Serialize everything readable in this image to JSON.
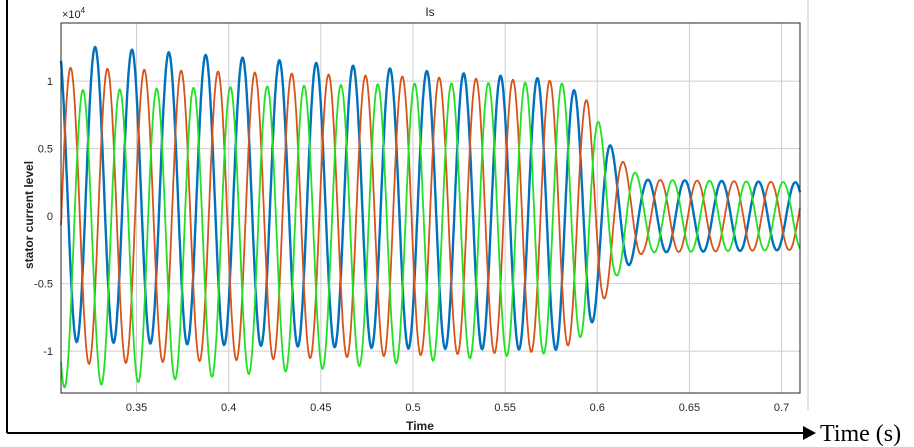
{
  "chart_data": {
    "type": "line",
    "title": "Is",
    "xlabel": "Time",
    "ylabel": "stator current level",
    "y_exponent_label": "×10",
    "y_exponent_power": "4",
    "outer_axis_label": "Time (s)",
    "xlim": [
      0.309,
      0.71
    ],
    "ylim": [
      -1.31,
      1.43
    ],
    "x_ticks": [
      "0.35",
      "0.4",
      "0.45",
      "0.5",
      "0.55",
      "0.6",
      "0.65",
      "0.7"
    ],
    "x_tick_values": [
      0.35,
      0.4,
      0.45,
      0.5,
      0.55,
      0.6,
      0.65,
      0.7
    ],
    "y_ticks": [
      "1",
      "0.5",
      "0",
      "-0.5",
      "-1"
    ],
    "y_tick_values": [
      1,
      0.5,
      0,
      -0.5,
      -1
    ],
    "grid": true,
    "frequency_hz": 50,
    "amplitude_envelope": [
      [
        0.309,
        1.1
      ],
      [
        0.45,
        1.05
      ],
      [
        0.58,
        1.0
      ],
      [
        0.595,
        0.85
      ],
      [
        0.61,
        0.45
      ],
      [
        0.625,
        0.27
      ],
      [
        0.71,
        0.25
      ]
    ],
    "series": [
      {
        "phase": "a",
        "color": "#0072BD",
        "first_peak_time": 0.3275,
        "dc_offset": [
          [
            0.309,
            0.17
          ],
          [
            0.5,
            0.05
          ],
          [
            0.6,
            0.0
          ],
          [
            0.71,
            0.0
          ]
        ]
      },
      {
        "phase": "b",
        "color": "#D95319",
        "first_peak_time": 0.3142,
        "dc_offset": [
          [
            0.309,
            0.0
          ],
          [
            0.71,
            0.0
          ]
        ]
      },
      {
        "phase": "c",
        "color": "#22E022",
        "first_peak_time": 0.3209,
        "dc_offset": [
          [
            0.309,
            -0.17
          ],
          [
            0.5,
            -0.05
          ],
          [
            0.6,
            0.0
          ],
          [
            0.71,
            0.0
          ]
        ]
      }
    ]
  }
}
